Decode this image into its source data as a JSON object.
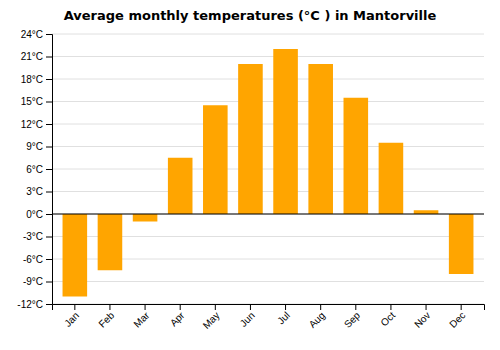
{
  "chart_data": {
    "type": "bar",
    "title": "Average monthly temperatures (°C ) in Mantorville",
    "categories": [
      "Jan",
      "Feb",
      "Mar",
      "Apr",
      "May",
      "Jun",
      "Jul",
      "Aug",
      "Sep",
      "Oct",
      "Nov",
      "Dec"
    ],
    "values": [
      -11.0,
      -7.5,
      -1.0,
      7.5,
      14.5,
      20.0,
      22.0,
      20.0,
      15.5,
      9.5,
      0.5,
      -8.0
    ],
    "color": "#FFA500",
    "ylim": [
      -12,
      24
    ],
    "yticks": [
      {
        "value": -12,
        "label": "-12°C"
      },
      {
        "value": -9,
        "label": "-9°C"
      },
      {
        "value": -6,
        "label": "-6°C"
      },
      {
        "value": -3,
        "label": "-3°C"
      },
      {
        "value": 0,
        "label": "0°C"
      },
      {
        "value": 3,
        "label": "3°C"
      },
      {
        "value": 6,
        "label": "6°C"
      },
      {
        "value": 9,
        "label": "9°C"
      },
      {
        "value": 12,
        "label": "12°C"
      },
      {
        "value": 15,
        "label": "15°C"
      },
      {
        "value": 18,
        "label": "18°C"
      },
      {
        "value": 21,
        "label": "21°C"
      },
      {
        "value": 24,
        "label": "24°C"
      }
    ],
    "grid": true
  }
}
